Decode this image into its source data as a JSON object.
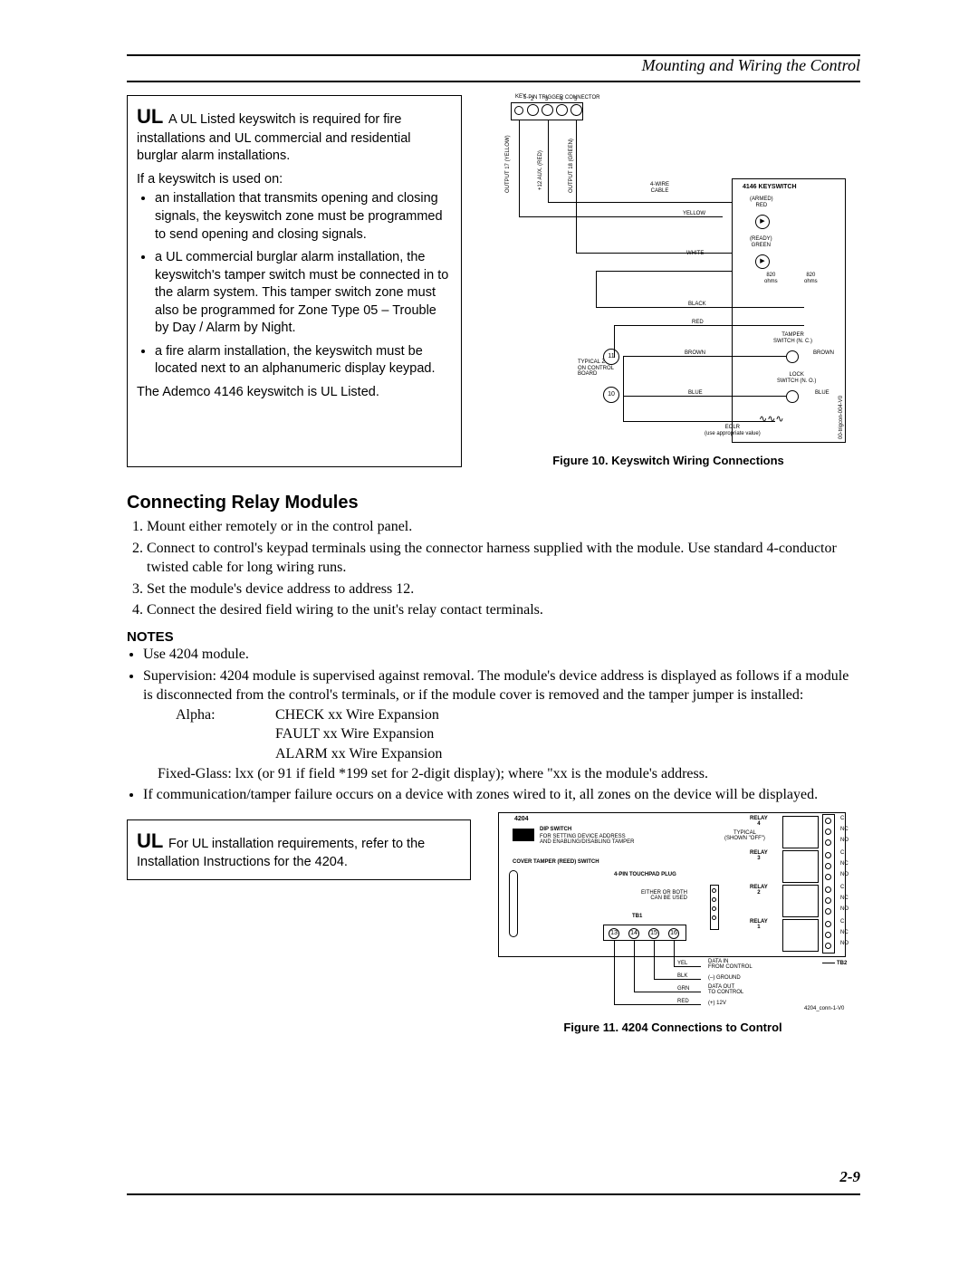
{
  "header": {
    "title": "Mounting and Wiring the Control"
  },
  "ul_box1": {
    "intro": "A UL Listed keyswitch is required for fire installations and UL commercial and residential burglar alarm installations.",
    "if_used": "If a keyswitch is used on:",
    "bullets": [
      "an installation that transmits opening and closing signals, the keyswitch zone must be programmed to send opening and closing signals.",
      "a UL commercial burglar alarm installation, the keyswitch's tamper switch must be connected in to the alarm system. This tamper switch zone must also be programmed for Zone Type 05 – Trouble by Day / Alarm by Night.",
      "a fire alarm installation, the keyswitch must be located next to an alphanumeric display keypad."
    ],
    "footer": "The Ademco 4146 keyswitch is UL Listed."
  },
  "fig10": {
    "caption": "Figure 10.  Keyswitch Wiring Connections",
    "labels": {
      "top": "5-PIN TRIGGER CONNECTOR",
      "pins": [
        "KEY",
        "2",
        "3",
        "4",
        "5"
      ],
      "out17": "OUTPUT 17   (YELLOW)",
      "aux": "+12 AUX.   (RED)",
      "out18": "OUTPUT 18   (GREEN)",
      "cable": "4-WIRE\nCABLE",
      "keyswitch": "4146 KEYSWITCH",
      "armed": "(ARMED)\nRED",
      "yellow": "YELLOW",
      "ready": "(READY)\nGREEN",
      "white": "WHITE",
      "ohms1": "820\nohms",
      "ohms2": "820\nohms",
      "black": "BLACK",
      "red": "RED",
      "tamper": "TAMPER\nSWITCH (N. C.)",
      "brown": "BROWN",
      "typzone": "TYPICAL ZONE\nON CONTROL\nBOARD",
      "lock": "LOCK\nSWITCH (N. O.)",
      "blue": "BLUE",
      "eolr": "EOLR\n(use appropriate value)",
      "n11": "11",
      "n10": "10",
      "rev": "00-trigcon-004-V0"
    }
  },
  "section": {
    "heading": "Connecting Relay Modules",
    "steps": [
      "Mount either remotely or in the control panel.",
      "Connect to control's keypad terminals using the connector harness supplied with the module. Use standard 4-conductor twisted cable for long wiring runs.",
      "Set the module's device address to address 12.",
      "Connect the desired field wiring to the unit's relay contact terminals."
    ]
  },
  "notes": {
    "heading": "NOTES",
    "items": [
      "Use 4204 module.",
      "Supervision: 4204 module is supervised against removal. The module's device address is displayed as follows if a module is disconnected from the control's terminals, or if the module cover is removed and the tamper jumper is installed:"
    ],
    "alpha_label": "Alpha:",
    "alpha_lines": [
      "CHECK xx  Wire Expansion",
      "FAULT xx  Wire Expansion",
      "ALARM xx Wire Expansion"
    ],
    "fixed": "Fixed-Glass:   lxx  (or 91 if field *199 set for 2-digit display); where \"xx is the module's address.",
    "tail": "If communication/tamper failure occurs on a device with zones wired to it, all zones on the device will be displayed."
  },
  "ul_box2": {
    "text": "For UL installation requirements, refer to the Installation Instructions for the 4204."
  },
  "fig11": {
    "caption": "Figure 11.  4204 Connections to Control",
    "labels": {
      "title": "4204",
      "dip": "DIP SWITCH",
      "dip_desc": "FOR SETTING DEVICE ADDRESS\nAND ENABLING/DISABLING TAMPER",
      "cover": "COVER TAMPER (REED) SWITCH",
      "plug": "4-PIN TOUCHPAD PLUG",
      "either": "EITHER OR BOTH\nCAN BE USED",
      "tb1": "TB1",
      "tb2": "TB2",
      "relays": [
        "RELAY\n4",
        "RELAY\n3",
        "RELAY\n2",
        "RELAY\n1"
      ],
      "typical": "TYPICAL\n(SHOWN \"OFF\")",
      "pins_tb1": [
        "13",
        "14",
        "15",
        "16"
      ],
      "wires": {
        "yel": "YEL",
        "yel_d": "DATA IN\nFROM CONTROL",
        "blk": "BLK",
        "blk_d": "(–) GROUND",
        "grn": "GRN",
        "grn_d": "DATA OUT\nTO CONTROL",
        "red": "RED",
        "red_d": "(+) 12V"
      },
      "contacts": [
        "C",
        "NC",
        "NO"
      ],
      "rev": "4204_conn-1-V0"
    }
  },
  "page_number": "2-9",
  "colors": {
    "line": "#000000",
    "bg": "#ffffff"
  }
}
